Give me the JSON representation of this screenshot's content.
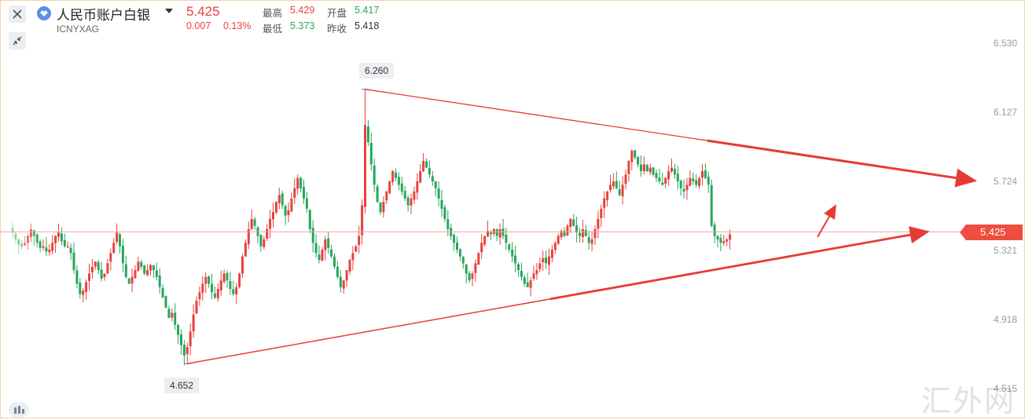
{
  "header": {
    "name": "人民币账户白银",
    "symbol": "ICNYXAG",
    "price": "5.425",
    "change": "0.007",
    "change_pct": "0.13%",
    "stats": [
      {
        "label": "最高",
        "value": "5.429",
        "color": "red"
      },
      {
        "label": "开盘",
        "value": "5.417",
        "color": "green"
      },
      {
        "label": "最低",
        "value": "5.373",
        "color": "green"
      },
      {
        "label": "昨收",
        "value": "5.418",
        "color": "dark"
      }
    ]
  },
  "icons": [
    "close-icon",
    "logo-icon",
    "collapse-icon",
    "indicator-icon"
  ],
  "colors": {
    "up": "#e8413c",
    "down": "#26a65b",
    "trendline": "#e63b34",
    "price_line": "#f2a3a0"
  },
  "watermark": "汇外网",
  "chart_data": {
    "type": "candlestick",
    "title": "",
    "xlabel": "",
    "ylabel": "",
    "y_ticks": [
      "6.530",
      "6.127",
      "5.724",
      "5.321",
      "4.918",
      "4.515"
    ],
    "ylim": [
      4.48,
      6.58
    ],
    "current_price": 5.425,
    "annotations": [
      {
        "label": "6.260",
        "bar": 115,
        "value": 6.26
      },
      {
        "label": "4.652",
        "bar": 57,
        "value": 4.652
      }
    ],
    "trendlines": [
      {
        "name": "upper",
        "from": {
          "bar": 115,
          "value": 6.26
        },
        "to": {
          "bar": 304,
          "value": 5.724
        }
      },
      {
        "name": "lower",
        "from": {
          "bar": 57,
          "value": 4.652
        },
        "to": {
          "bar": 289,
          "value": 5.425
        }
      }
    ],
    "close": [
      5.42,
      5.38,
      5.35,
      5.34,
      5.36,
      5.4,
      5.44,
      5.4,
      5.36,
      5.33,
      5.34,
      5.31,
      5.32,
      5.36,
      5.4,
      5.42,
      5.37,
      5.34,
      5.34,
      5.3,
      5.2,
      5.12,
      5.06,
      5.08,
      5.13,
      5.18,
      5.22,
      5.25,
      5.2,
      5.15,
      5.18,
      5.24,
      5.3,
      5.36,
      5.42,
      5.34,
      5.24,
      5.16,
      5.12,
      5.16,
      5.2,
      5.25,
      5.22,
      5.18,
      5.2,
      5.23,
      5.2,
      5.16,
      5.1,
      5.04,
      4.98,
      4.92,
      4.95,
      4.88,
      4.82,
      4.76,
      4.7,
      4.75,
      4.84,
      4.94,
      5.02,
      5.07,
      5.12,
      5.16,
      5.12,
      5.07,
      5.04,
      5.09,
      5.14,
      5.18,
      5.14,
      5.09,
      5.06,
      5.1,
      5.18,
      5.28,
      5.36,
      5.44,
      5.5,
      5.46,
      5.4,
      5.34,
      5.38,
      5.44,
      5.5,
      5.54,
      5.6,
      5.64,
      5.58,
      5.52,
      5.55,
      5.62,
      5.68,
      5.74,
      5.68,
      5.62,
      5.56,
      5.44,
      5.36,
      5.3,
      5.26,
      5.32,
      5.38,
      5.33,
      5.28,
      5.22,
      5.16,
      5.1,
      5.14,
      5.2,
      5.26,
      5.3,
      5.34,
      5.4,
      5.58,
      6.05,
      5.95,
      5.82,
      5.7,
      5.6,
      5.54,
      5.6,
      5.66,
      5.72,
      5.78,
      5.74,
      5.7,
      5.66,
      5.62,
      5.58,
      5.62,
      5.66,
      5.72,
      5.78,
      5.84,
      5.8,
      5.76,
      5.72,
      5.68,
      5.62,
      5.56,
      5.5,
      5.44,
      5.4,
      5.36,
      5.32,
      5.28,
      5.24,
      5.18,
      5.14,
      5.18,
      5.24,
      5.3,
      5.36,
      5.4,
      5.43,
      5.41,
      5.44,
      5.4,
      5.44,
      5.4,
      5.36,
      5.32,
      5.28,
      5.24,
      5.2,
      5.16,
      5.12,
      5.1,
      5.14,
      5.18,
      5.2,
      5.24,
      5.27,
      5.24,
      5.28,
      5.32,
      5.36,
      5.4,
      5.43,
      5.4,
      5.46,
      5.5,
      5.46,
      5.42,
      5.4,
      5.44,
      5.4,
      5.36,
      5.38,
      5.44,
      5.5,
      5.56,
      5.62,
      5.66,
      5.7,
      5.72,
      5.68,
      5.64,
      5.7,
      5.76,
      5.84,
      5.9,
      5.86,
      5.82,
      5.78,
      5.82,
      5.78,
      5.8,
      5.76,
      5.74,
      5.72,
      5.7,
      5.74,
      5.78,
      5.8,
      5.76,
      5.72,
      5.68,
      5.66,
      5.7,
      5.74,
      5.72,
      5.7,
      5.74,
      5.78,
      5.74,
      5.7,
      5.46,
      5.4,
      5.38,
      5.36,
      5.37,
      5.38,
      5.41
    ]
  }
}
